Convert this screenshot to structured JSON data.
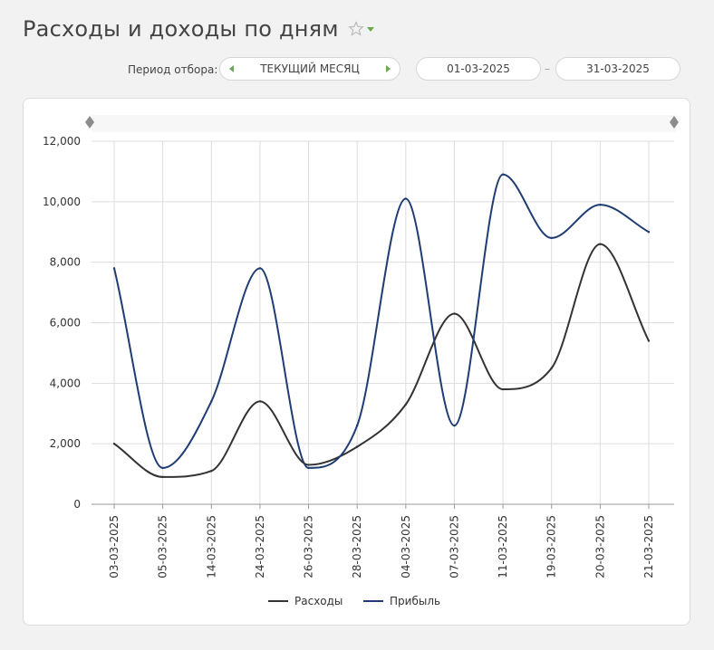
{
  "header": {
    "title": "Расходы и доходы по дням"
  },
  "filter": {
    "label": "Период отбора:",
    "period_value": "ТЕКУЩИЙ МЕСЯЦ",
    "date_from": "01-03-2025",
    "date_separator": "–",
    "date_to": "31-03-2025"
  },
  "colors": {
    "accent": "#6aa84f",
    "expenses": "#333333",
    "profit": "#1f3c73",
    "grid": "#dddddd"
  },
  "chart_data": {
    "type": "line",
    "categories": [
      "03-03-2025",
      "05-03-2025",
      "14-03-2025",
      "24-03-2025",
      "26-03-2025",
      "28-03-2025",
      "04-03-2025",
      "07-03-2025",
      "11-03-2025",
      "19-03-2025",
      "20-03-2025",
      "21-03-2025"
    ],
    "series": [
      {
        "name": "Расходы",
        "color": "#333333",
        "values": [
          2000,
          900,
          1100,
          3400,
          1300,
          1900,
          3300,
          6300,
          3800,
          4500,
          8600,
          5400
        ]
      },
      {
        "name": "Прибыль",
        "color": "#1f3c73",
        "values": [
          7800,
          1200,
          3400,
          7800,
          1200,
          2600,
          10100,
          2600,
          10900,
          8800,
          9900,
          9000
        ]
      }
    ],
    "ylim": [
      0,
      12000
    ],
    "yticks": [
      0,
      2000,
      4000,
      6000,
      8000,
      10000,
      12000
    ],
    "ytick_labels": [
      "0",
      "2,000",
      "4,000",
      "6,000",
      "8,000",
      "10,000",
      "12,000"
    ],
    "grid": true,
    "legend_position": "bottom-center",
    "title": "",
    "xlabel": "",
    "ylabel": ""
  }
}
